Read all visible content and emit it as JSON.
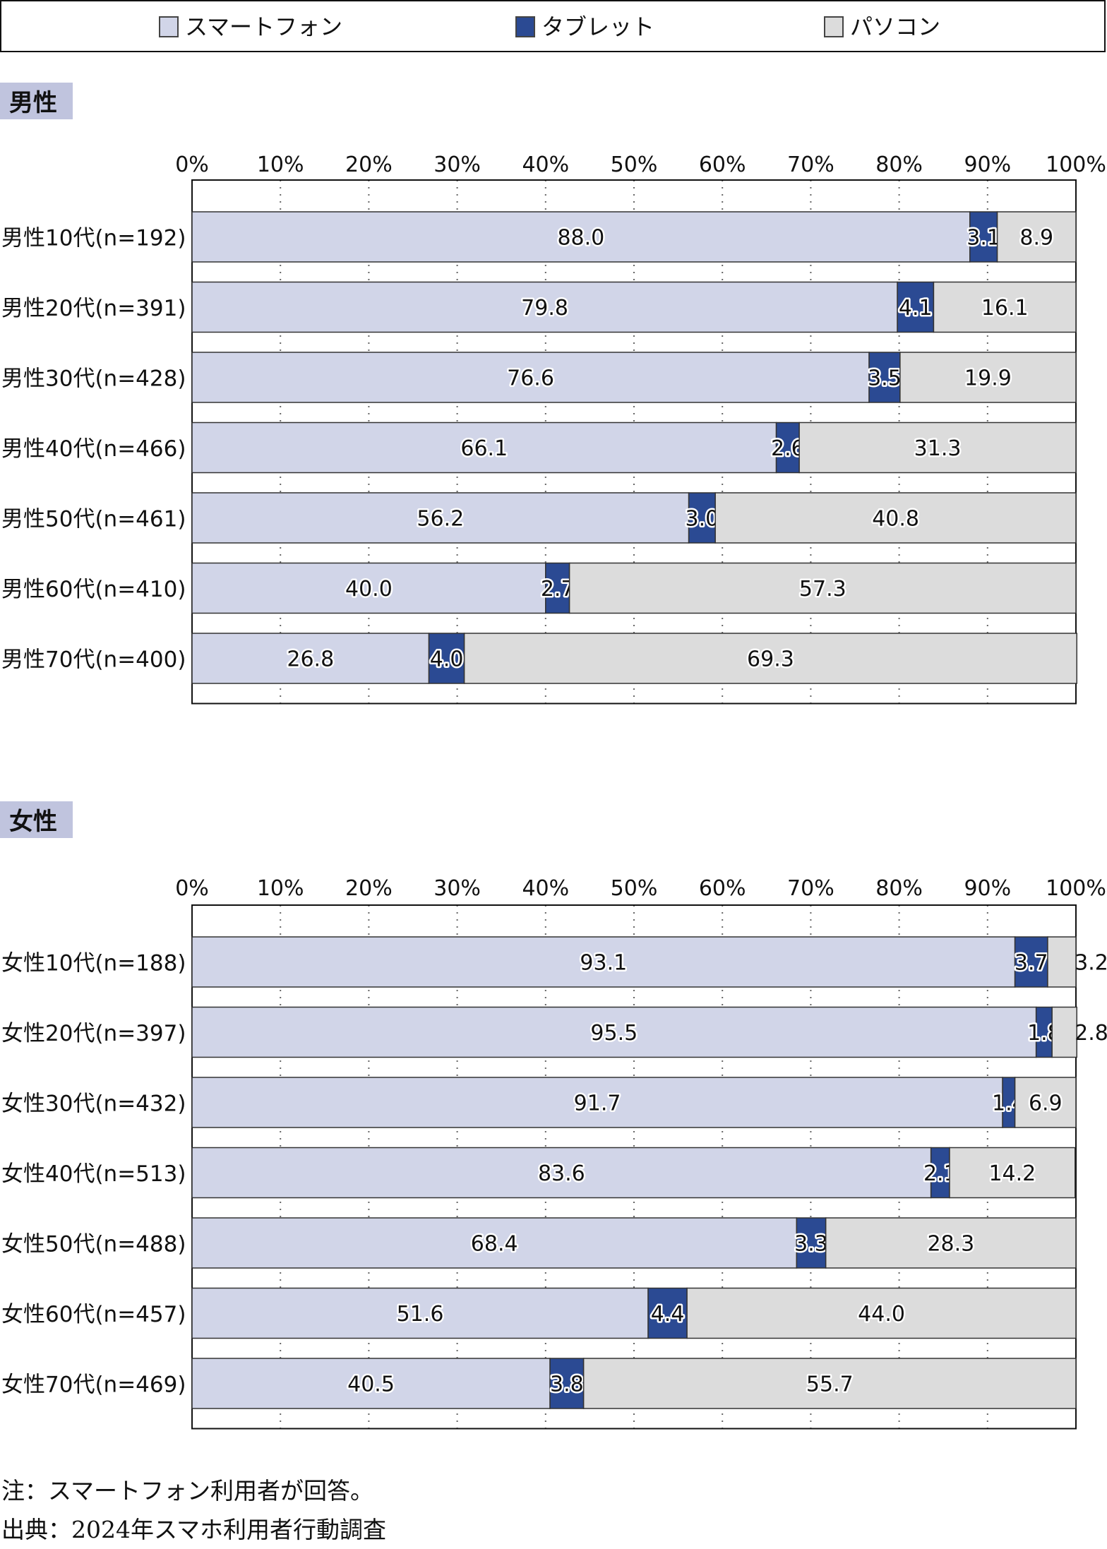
{
  "legend": [
    {
      "name": "スマートフォン",
      "color": "#d1d5e8"
    },
    {
      "name": "タブレット",
      "color": "#2b4a93"
    },
    {
      "name": "パソコン",
      "color": "#dcdcdc"
    }
  ],
  "notes": {
    "note": "注：スマートフォン利用者が回答。",
    "source": "出典：2024年スマホ利用者行動調査"
  },
  "chart_data": [
    {
      "type": "bar",
      "orientation": "horizontal-stacked-100",
      "title": "男性",
      "title_bg": "#c0c4de",
      "xlim": [
        0,
        100
      ],
      "ticks": [
        "0%",
        "10%",
        "20%",
        "30%",
        "40%",
        "50%",
        "60%",
        "70%",
        "80%",
        "90%",
        "100%"
      ],
      "grid": "vertical dotted",
      "legend": "top",
      "categories": [
        "男性10代(n=192)",
        "男性20代(n=391)",
        "男性30代(n=428)",
        "男性40代(n=466)",
        "男性50代(n=461)",
        "男性60代(n=410)",
        "男性70代(n=400)"
      ],
      "series": [
        {
          "name": "スマートフォン",
          "values": [
            88.0,
            79.8,
            76.6,
            66.1,
            56.2,
            40.0,
            26.8
          ]
        },
        {
          "name": "タブレット",
          "values": [
            3.1,
            4.1,
            3.5,
            2.6,
            3.0,
            2.7,
            4.0
          ]
        },
        {
          "name": "パソコン",
          "values": [
            8.9,
            16.1,
            19.9,
            31.3,
            40.8,
            57.3,
            69.3
          ]
        }
      ]
    },
    {
      "type": "bar",
      "orientation": "horizontal-stacked-100",
      "title": "女性",
      "title_bg": "#c0c4de",
      "xlim": [
        0,
        100
      ],
      "ticks": [
        "0%",
        "10%",
        "20%",
        "30%",
        "40%",
        "50%",
        "60%",
        "70%",
        "80%",
        "90%",
        "100%"
      ],
      "grid": "vertical dotted",
      "legend": "top",
      "categories": [
        "女性10代(n=188)",
        "女性20代(n=397)",
        "女性30代(n=432)",
        "女性40代(n=513)",
        "女性50代(n=488)",
        "女性60代(n=457)",
        "女性70代(n=469)"
      ],
      "series": [
        {
          "name": "スマートフォン",
          "values": [
            93.1,
            95.5,
            91.7,
            83.6,
            68.4,
            51.6,
            40.5
          ]
        },
        {
          "name": "タブレット",
          "values": [
            3.7,
            1.8,
            1.4,
            2.1,
            3.3,
            4.4,
            3.8
          ]
        },
        {
          "name": "パソコン",
          "values": [
            3.2,
            2.8,
            6.9,
            14.2,
            28.3,
            44.0,
            55.7
          ]
        }
      ]
    }
  ]
}
